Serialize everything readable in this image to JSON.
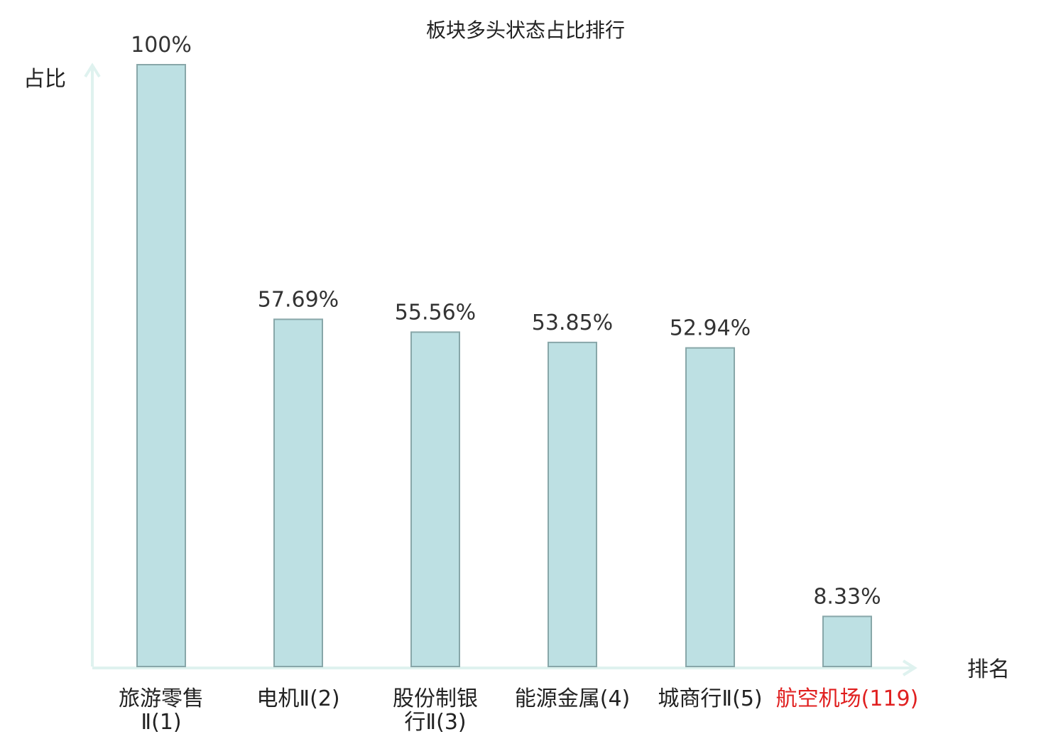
{
  "chart_data": {
    "type": "bar",
    "title": "板块多头状态占比排行",
    "ylabel": "占比",
    "xlabel": "排名",
    "ylim": [
      0,
      100
    ],
    "grid": false,
    "categories": [
      {
        "name_lines": [
          "旅游零售",
          "Ⅱ(1)"
        ],
        "highlight": false
      },
      {
        "name_lines": [
          "电机Ⅱ(2)"
        ],
        "highlight": false
      },
      {
        "name_lines": [
          "股份制银",
          "行Ⅱ(3)"
        ],
        "highlight": false
      },
      {
        "name_lines": [
          "能源金属(4)"
        ],
        "highlight": false
      },
      {
        "name_lines": [
          "城商行Ⅱ(5)"
        ],
        "highlight": false
      },
      {
        "name_lines": [
          "航空机场(119)"
        ],
        "highlight": true
      }
    ],
    "values": [
      100,
      57.69,
      55.56,
      53.85,
      52.94,
      8.33
    ],
    "value_labels": [
      "100%",
      "57.69%",
      "55.56%",
      "53.85%",
      "52.94%",
      "8.33%"
    ],
    "colors": {
      "bar_fill": "#bde0e3",
      "bar_stroke": "#88a7a9",
      "axis": "#dff2ef",
      "highlight_text": "#e02020",
      "normal_text": "#222222"
    }
  }
}
